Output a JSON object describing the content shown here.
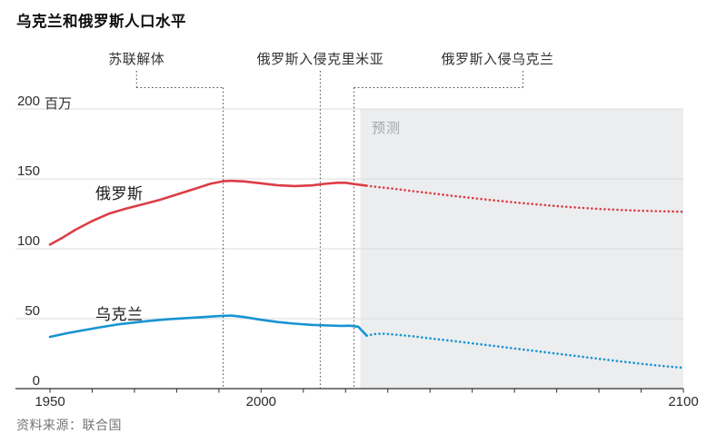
{
  "title": "乌克兰和俄罗斯人口水平",
  "source": "资料来源：联合国",
  "forecast_label": "预测",
  "y_unit": "百万",
  "colors": {
    "russia": "#dc3d46",
    "ukraine": "#1794d1",
    "forecast_bg": "#ebedef",
    "grid": "#dadcdd",
    "axis": "#2f2f2f",
    "annotation_line": "#4d4d4d"
  },
  "chart_data": {
    "type": "line",
    "title": "乌克兰和俄罗斯人口水平",
    "xlabel": "",
    "ylabel": "百万",
    "x_range": [
      1950,
      2100
    ],
    "y_range": [
      0,
      200
    ],
    "y_ticks": [
      0,
      50,
      100,
      150,
      200
    ],
    "x_tick_step": 10,
    "x_labeled_ticks": [
      1950,
      2000,
      2100
    ],
    "grid": "horizontal",
    "forecast_start": 2023.5,
    "forecast_end": 2100,
    "events": [
      {
        "label": "苏联解体",
        "year": 1991,
        "label_anchor_year": 1970.5,
        "stub_year": 1970.5,
        "bracket": true
      },
      {
        "label": "俄罗斯入侵克里米亚",
        "year": 2014,
        "label_anchor_year": 2014,
        "stub_year": 2014,
        "bracket": false
      },
      {
        "label": "俄罗斯入侵乌克兰",
        "year": 2022,
        "label_anchor_year": 2056,
        "stub_year": 2062,
        "bracket": true
      }
    ],
    "series": [
      {
        "name": "俄罗斯",
        "color_key": "russia",
        "actual": [
          [
            1950,
            103
          ],
          [
            1953,
            108
          ],
          [
            1956,
            113.6
          ],
          [
            1960,
            119.9
          ],
          [
            1964,
            125.2
          ],
          [
            1968,
            128.7
          ],
          [
            1972,
            131.8
          ],
          [
            1976,
            135
          ],
          [
            1980,
            138.8
          ],
          [
            1984,
            142.6
          ],
          [
            1988,
            146.5
          ],
          [
            1991,
            148.3
          ],
          [
            1993,
            148.6
          ],
          [
            1996,
            148.2
          ],
          [
            2000,
            146.8
          ],
          [
            2004,
            145.4
          ],
          [
            2008,
            144.9
          ],
          [
            2012,
            145.3
          ],
          [
            2015,
            146.4
          ],
          [
            2018,
            147.2
          ],
          [
            2020,
            147.2
          ],
          [
            2022,
            146.3
          ],
          [
            2025,
            145.1
          ]
        ],
        "forecast": [
          [
            2025,
            145.1
          ],
          [
            2028,
            144
          ],
          [
            2032,
            142.7
          ],
          [
            2036,
            141.2
          ],
          [
            2040,
            139.8
          ],
          [
            2045,
            138
          ],
          [
            2050,
            136.3
          ],
          [
            2055,
            134.7
          ],
          [
            2060,
            133.2
          ],
          [
            2065,
            131.8
          ],
          [
            2070,
            130.5
          ],
          [
            2075,
            129.4
          ],
          [
            2080,
            128.5
          ],
          [
            2085,
            127.8
          ],
          [
            2090,
            127.2
          ],
          [
            2095,
            126.8
          ],
          [
            2100,
            126.5
          ]
        ]
      },
      {
        "name": "乌克兰",
        "color_key": "ukraine",
        "actual": [
          [
            1950,
            37
          ],
          [
            1954,
            39.6
          ],
          [
            1958,
            41.8
          ],
          [
            1962,
            43.9
          ],
          [
            1966,
            45.9
          ],
          [
            1970,
            47.3
          ],
          [
            1974,
            48.6
          ],
          [
            1978,
            49.6
          ],
          [
            1982,
            50.4
          ],
          [
            1986,
            51.1
          ],
          [
            1990,
            51.9
          ],
          [
            1993,
            52.2
          ],
          [
            1996,
            51.2
          ],
          [
            2000,
            49.2
          ],
          [
            2004,
            47.6
          ],
          [
            2008,
            46.4
          ],
          [
            2012,
            45.6
          ],
          [
            2016,
            45.1
          ],
          [
            2019,
            44.9
          ],
          [
            2021,
            45
          ],
          [
            2023,
            44.3
          ],
          [
            2025,
            37.9
          ]
        ],
        "forecast": [
          [
            2025,
            37.9
          ],
          [
            2027,
            39
          ],
          [
            2029,
            39.3
          ],
          [
            2032,
            38.6
          ],
          [
            2036,
            37.4
          ],
          [
            2040,
            35.9
          ],
          [
            2045,
            34.2
          ],
          [
            2050,
            32.4
          ],
          [
            2055,
            30.6
          ],
          [
            2060,
            28.7
          ],
          [
            2065,
            26.9
          ],
          [
            2070,
            25
          ],
          [
            2075,
            23.2
          ],
          [
            2080,
            21.3
          ],
          [
            2085,
            19.5
          ],
          [
            2090,
            17.8
          ],
          [
            2095,
            16.2
          ],
          [
            2100,
            14.9
          ]
        ]
      }
    ]
  }
}
